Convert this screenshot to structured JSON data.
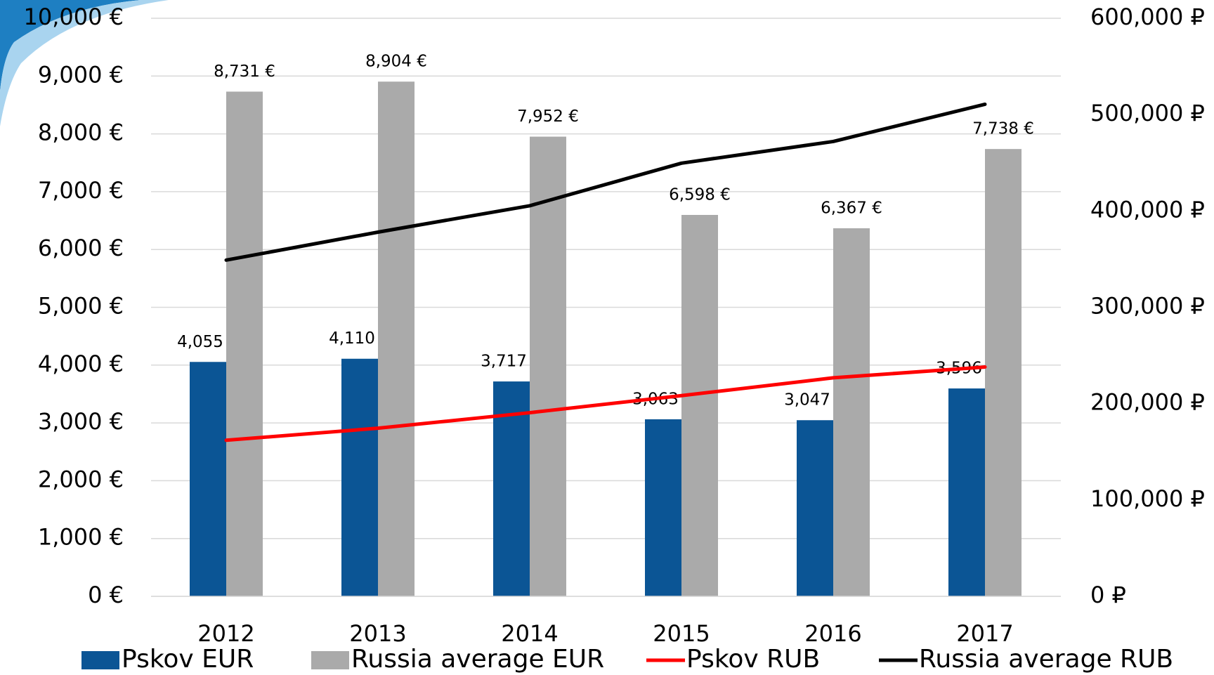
{
  "chart_data": {
    "type": "bar",
    "categories": [
      "2012",
      "2013",
      "2014",
      "2015",
      "2016",
      "2017"
    ],
    "series": [
      {
        "name": "Pskov EUR",
        "type": "bar",
        "color": "#0b5595",
        "values": [
          4055,
          4110,
          3717,
          3063,
          3047,
          3596
        ],
        "value_labels": [
          "4,055  €",
          "4,110  €",
          "3,717  €",
          "3,063  €",
          "3,047  €",
          "3,596  €"
        ]
      },
      {
        "name": "Russia average EUR",
        "type": "bar",
        "color": "#aaaaaa",
        "values": [
          8731,
          8904,
          7952,
          6598,
          6367,
          7738
        ],
        "value_labels": [
          "8,731  €",
          "8,904  €",
          "7,952  €",
          "6,598  €",
          "6,367  €",
          "7,738  €"
        ]
      },
      {
        "name": "Pskov RUB",
        "type": "line",
        "axis": "y2",
        "color": "#ff0000",
        "values": [
          162000,
          174500,
          190600,
          208300,
          226800,
          238000
        ]
      },
      {
        "name": "Russia average RUB",
        "type": "line",
        "axis": "y2",
        "color": "#000000",
        "values": [
          349000,
          378000,
          405400,
          449600,
          472100,
          510700
        ]
      }
    ],
    "ylim": [
      0,
      10000
    ],
    "yticks": [
      {
        "value": 0,
        "label": "0 €"
      },
      {
        "value": 1000,
        "label": "1,000 €"
      },
      {
        "value": 2000,
        "label": "2,000 €"
      },
      {
        "value": 3000,
        "label": "3,000 €"
      },
      {
        "value": 4000,
        "label": "4,000 €"
      },
      {
        "value": 5000,
        "label": "5,000 €"
      },
      {
        "value": 6000,
        "label": "6,000 €"
      },
      {
        "value": 7000,
        "label": "7,000 €"
      },
      {
        "value": 8000,
        "label": "8,000 €"
      },
      {
        "value": 9000,
        "label": "9,000 €"
      },
      {
        "value": 10000,
        "label": "10,000 €"
      }
    ],
    "y2lim": [
      0,
      600000
    ],
    "y2ticks": [
      {
        "value": 0,
        "label": "0 ₽"
      },
      {
        "value": 100000,
        "label": "100,000 ₽"
      },
      {
        "value": 200000,
        "label": "200,000 ₽"
      },
      {
        "value": 300000,
        "label": "300,000 ₽"
      },
      {
        "value": 400000,
        "label": "400,000 ₽"
      },
      {
        "value": 500000,
        "label": "500,000 ₽"
      },
      {
        "value": 600000,
        "label": "600,000 ₽"
      }
    ],
    "grid": true,
    "legend": "bottom"
  }
}
